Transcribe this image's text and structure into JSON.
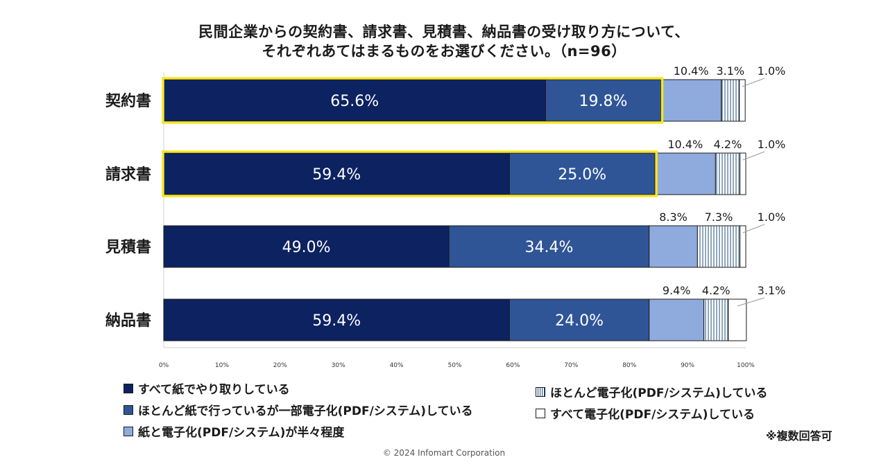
{
  "title": {
    "line1": "民間企業からの契約書、請求書、見積書、納品書の受け取り方について、",
    "line2": "それぞれあてはまるものをお選びください。（n=96）"
  },
  "colors": {
    "s1": "#0d2260",
    "s2": "#2f5597",
    "s3": "#8faadc",
    "s4_stripe": "#1f4e79",
    "s5": "#ffffff",
    "highlight": "#f5e625"
  },
  "chart_data": {
    "type": "bar",
    "orientation": "horizontal-stacked-100",
    "categories": [
      "契約書",
      "請求書",
      "見積書",
      "納品書"
    ],
    "series": [
      {
        "name": "すべて紙でやり取りしている",
        "values": [
          65.6,
          59.4,
          49.0,
          59.4
        ],
        "labels": [
          "65.6%",
          "59.4%",
          "49.0%",
          "59.4%"
        ]
      },
      {
        "name": "ほとんど紙で行っているが一部電子化(PDF/システム)している",
        "values": [
          19.8,
          25.0,
          34.4,
          24.0
        ],
        "labels": [
          "19.8%",
          "25.0%",
          "34.4%",
          "24.0%"
        ]
      },
      {
        "name": "紙と電子化(PDF/システム)が半々程度",
        "values": [
          10.4,
          10.4,
          8.3,
          9.4
        ],
        "labels": [
          "10.4%",
          "10.4%",
          "8.3%",
          "9.4%"
        ]
      },
      {
        "name": "ほとんど電子化(PDF/システム)している",
        "values": [
          3.1,
          4.2,
          7.3,
          4.2
        ],
        "labels": [
          "3.1%",
          "4.2%",
          "7.3%",
          "4.2%"
        ]
      },
      {
        "name": "すべて電子化(PDF/システム)している",
        "values": [
          1.0,
          1.0,
          1.0,
          3.1
        ],
        "labels": [
          "1.0%",
          "1.0%",
          "1.0%",
          "3.1%"
        ]
      }
    ],
    "highlighted_categories": [
      "契約書",
      "請求書"
    ],
    "xlim": [
      0,
      100
    ],
    "x_ticks": [
      "0%",
      "10%",
      "20%",
      "30%",
      "40%",
      "50%",
      "60%",
      "70%",
      "80%",
      "90%",
      "100%"
    ]
  },
  "legend": {
    "s1": "すべて紙でやり取りしている",
    "s2": "ほとんど紙で行っているが一部電子化(PDF/システム)している",
    "s3": "紙と電子化(PDF/システム)が半々程度",
    "s4": "ほとんど電子化(PDF/システム)している",
    "s5": "すべて電子化(PDF/システム)している"
  },
  "note": "※複数回答可",
  "copyright": "© 2024 Infomart Corporation"
}
